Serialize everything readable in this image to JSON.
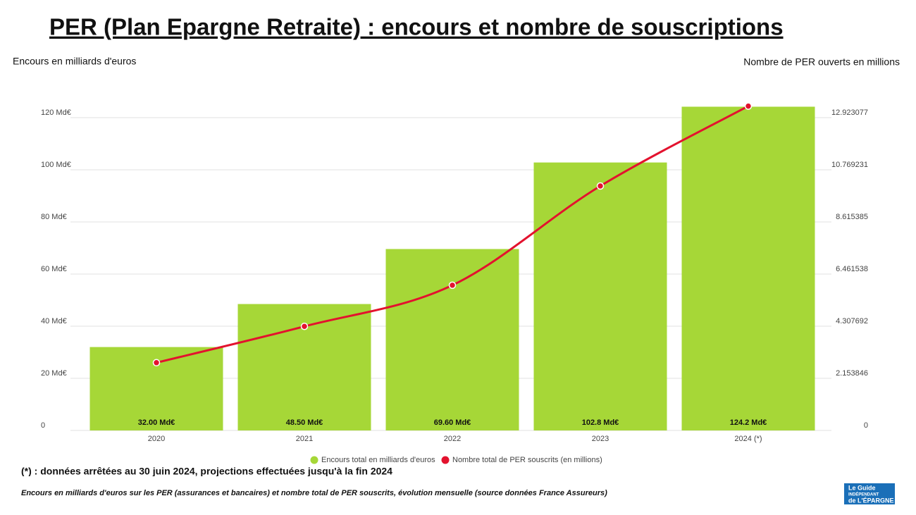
{
  "chart_data": {
    "type": "bar-line",
    "title": "PER (Plan Epargne Retraite) : encours et nombre de souscriptions",
    "y_label": "Encours en milliards d'euros",
    "y2_label": "Nombre de PER ouverts en millions",
    "categories": [
      "2020",
      "2021",
      "2022",
      "2023",
      "2024 (*)"
    ],
    "series": [
      {
        "name": "Encours total en milliards d'euros",
        "type": "bar",
        "color": "#a6d737",
        "values": [
          32.0,
          48.5,
          69.6,
          102.8,
          124.2
        ],
        "value_labels": [
          "32.00 Md€",
          "48.50 Md€",
          "69.60 Md€",
          "102.8 Md€",
          "124.2 Md€"
        ]
      },
      {
        "name": "Nombre total de PER souscrits (en millions)",
        "type": "line",
        "axis": "y2",
        "color": "#e3122e",
        "values": [
          2.8,
          4.3,
          6.0,
          10.1,
          13.4
        ]
      }
    ],
    "ylim": [
      0,
      125
    ],
    "yticks": [
      0,
      {
        "value": 20,
        "label": "20 Md€"
      },
      {
        "value": 40,
        "label": "40 Md€"
      },
      {
        "value": 60,
        "label": "60 Md€"
      },
      {
        "value": 80,
        "label": "80 Md€"
      },
      {
        "value": 100,
        "label": "100 Md€"
      },
      {
        "value": 120,
        "label": "120 Md€"
      }
    ],
    "y2lim": [
      0,
      13.461538
    ],
    "y2ticks": [
      0,
      2.153846,
      4.307692,
      6.461538,
      8.615385,
      10.769231,
      12.923077
    ],
    "grid": true,
    "legend": "bottom",
    "footnote": "(*) : données arrêtées au 30 juin 2024, projections effectuées jusqu'à la fin 2024",
    "caption": "Encours en milliards d'euros sur les PER (assurances et bancaires) et nombre total de PER souscrits, évolution mensuelle (source données France Assureurs)"
  },
  "logo": {
    "line1": "Le Guide",
    "line2": "INDÉPENDANT",
    "line3": "de L'ÉPARGNE"
  }
}
